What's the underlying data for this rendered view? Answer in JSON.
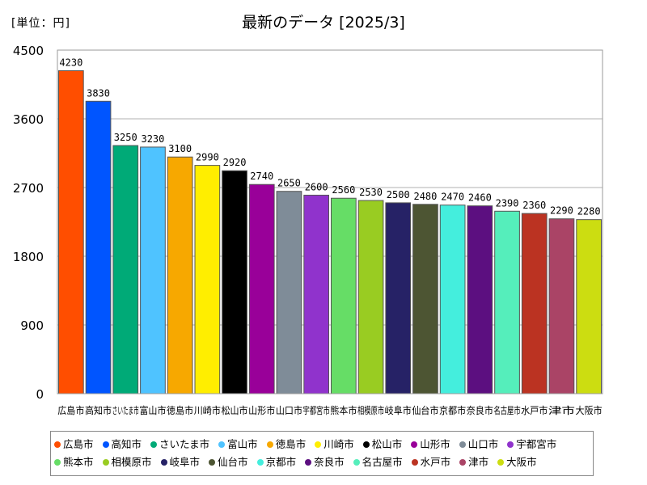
{
  "unit_label": "[単位：円]",
  "chart_data": {
    "type": "bar",
    "title": "最新のデータ [2025/3]",
    "xlabel": "",
    "ylabel": "",
    "ylim": [
      0,
      4500
    ],
    "yticks": [
      0,
      900,
      1800,
      2700,
      3600,
      4500
    ],
    "grid": true,
    "legend": "bottom",
    "categories": [
      "広島市",
      "高知市",
      "さいたま市",
      "富山市",
      "徳島市",
      "川崎市",
      "松山市",
      "山形市",
      "山口市",
      "宇都宮市",
      "熊本市",
      "相模原市",
      "岐阜市",
      "仙台市",
      "京都市",
      "奈良市",
      "名古屋市",
      "水戸市",
      "津市",
      "大阪市"
    ],
    "values": [
      4230,
      3830,
      3250,
      3230,
      3100,
      2990,
      2920,
      2740,
      2650,
      2600,
      2560,
      2530,
      2500,
      2480,
      2470,
      2460,
      2390,
      2360,
      2290,
      2280
    ],
    "colors": [
      "#ff4e00",
      "#0055ff",
      "#00aa77",
      "#4fc3ff",
      "#f7a800",
      "#ffee00",
      "#000000",
      "#990099",
      "#7f8c98",
      "#9033cc",
      "#66dd66",
      "#99cc22",
      "#262266",
      "#4d5533",
      "#44eedd",
      "#5c0f80",
      "#55eebb",
      "#bb3322",
      "#aa4466",
      "#ccdd11"
    ]
  }
}
